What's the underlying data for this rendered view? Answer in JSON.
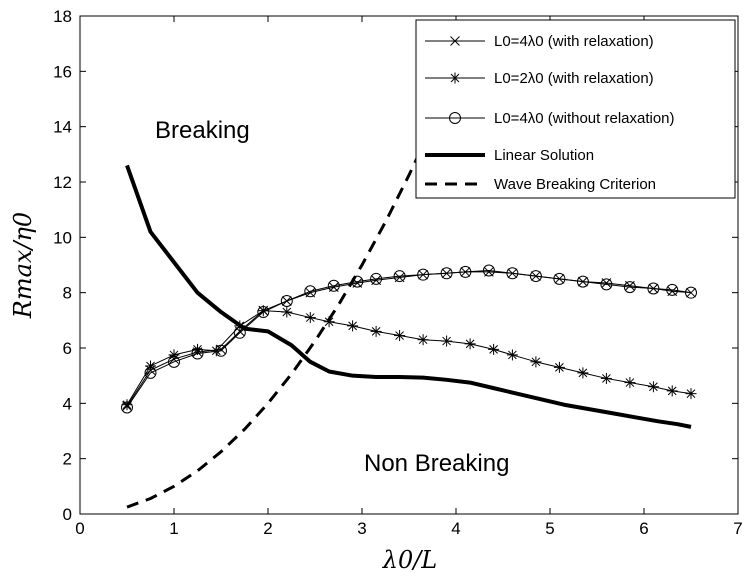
{
  "chart_data": {
    "type": "line",
    "xlabel": "λ0/L",
    "ylabel": "Rmax/η0",
    "xlim": [
      0,
      7
    ],
    "ylim": [
      0,
      18
    ],
    "x_ticks": [
      0,
      1,
      2,
      3,
      4,
      5,
      6,
      7
    ],
    "y_ticks": [
      0,
      2,
      4,
      6,
      8,
      10,
      12,
      14,
      16,
      18
    ],
    "grid": false,
    "legend_position": "top-right",
    "annotations": [
      {
        "text": "Breaking",
        "x": 1.6,
        "y": 13.9
      },
      {
        "text": "Non Breaking",
        "x": 4.3,
        "y": 1.9
      }
    ],
    "series": [
      {
        "name": "L0=4λ0 (with relaxation)",
        "style": "thin-line-x-marker",
        "x": [
          0.5,
          0.75,
          1.0,
          1.25,
          1.5,
          1.7,
          1.95,
          2.2,
          2.45,
          2.7,
          2.95,
          3.15,
          3.4,
          3.65,
          3.9,
          4.1,
          4.35,
          4.6,
          4.85,
          5.1,
          5.35,
          5.6,
          5.85,
          6.1,
          6.3,
          6.5
        ],
        "y": [
          3.9,
          5.2,
          5.6,
          5.85,
          5.95,
          6.6,
          7.35,
          7.7,
          8.0,
          8.2,
          8.35,
          8.45,
          8.55,
          8.65,
          8.7,
          8.75,
          8.75,
          8.7,
          8.6,
          8.5,
          8.4,
          8.35,
          8.25,
          8.15,
          8.05,
          8.0
        ]
      },
      {
        "name": "L0=2λ0 (with relaxation)",
        "style": "thin-line-star-marker",
        "x": [
          0.5,
          0.75,
          1.0,
          1.25,
          1.45,
          1.7,
          1.95,
          2.2,
          2.45,
          2.65,
          2.9,
          3.15,
          3.4,
          3.65,
          3.9,
          4.15,
          4.4,
          4.6,
          4.85,
          5.1,
          5.35,
          5.6,
          5.85,
          6.1,
          6.3,
          6.5
        ],
        "y": [
          3.95,
          5.35,
          5.75,
          5.95,
          5.9,
          6.8,
          7.35,
          7.3,
          7.1,
          6.95,
          6.8,
          6.6,
          6.45,
          6.3,
          6.25,
          6.15,
          5.95,
          5.75,
          5.5,
          5.3,
          5.1,
          4.9,
          4.75,
          4.6,
          4.45,
          4.35
        ]
      },
      {
        "name": "L0=4λ0 (without relaxation)",
        "style": "thin-line-circle-marker",
        "x": [
          0.5,
          0.75,
          1.0,
          1.25,
          1.5,
          1.7,
          1.95,
          2.2,
          2.45,
          2.7,
          2.95,
          3.15,
          3.4,
          3.65,
          3.9,
          4.1,
          4.35,
          4.6,
          4.85,
          5.1,
          5.35,
          5.6,
          5.85,
          6.1,
          6.3,
          6.5
        ],
        "y": [
          3.85,
          5.1,
          5.5,
          5.8,
          5.9,
          6.55,
          7.3,
          7.7,
          8.05,
          8.25,
          8.4,
          8.5,
          8.6,
          8.65,
          8.7,
          8.75,
          8.8,
          8.7,
          8.6,
          8.5,
          8.4,
          8.3,
          8.2,
          8.15,
          8.1,
          8.0
        ]
      },
      {
        "name": "Linear Solution",
        "style": "thick-solid",
        "x": [
          0.5,
          0.75,
          1.0,
          1.25,
          1.5,
          1.75,
          2.0,
          2.25,
          2.45,
          2.65,
          2.9,
          3.15,
          3.4,
          3.65,
          3.9,
          4.15,
          4.4,
          4.65,
          4.9,
          5.15,
          5.4,
          5.65,
          5.9,
          6.15,
          6.35,
          6.5
        ],
        "y": [
          12.6,
          10.2,
          9.1,
          8.0,
          7.3,
          6.7,
          6.6,
          6.1,
          5.5,
          5.15,
          5.0,
          4.95,
          4.95,
          4.93,
          4.85,
          4.75,
          4.55,
          4.35,
          4.15,
          3.95,
          3.8,
          3.65,
          3.5,
          3.35,
          3.25,
          3.15
        ]
      },
      {
        "name": "Wave Breaking Criterion",
        "style": "thick-dashed",
        "x": [
          0.5,
          0.75,
          1.0,
          1.25,
          1.5,
          1.75,
          2.0,
          2.25,
          2.5,
          2.75,
          3.0,
          3.25,
          3.5,
          3.7
        ],
        "y": [
          0.25,
          0.56,
          1.0,
          1.56,
          2.25,
          3.06,
          4.0,
          5.06,
          6.25,
          7.56,
          9.0,
          10.56,
          12.25,
          13.69
        ]
      }
    ]
  }
}
